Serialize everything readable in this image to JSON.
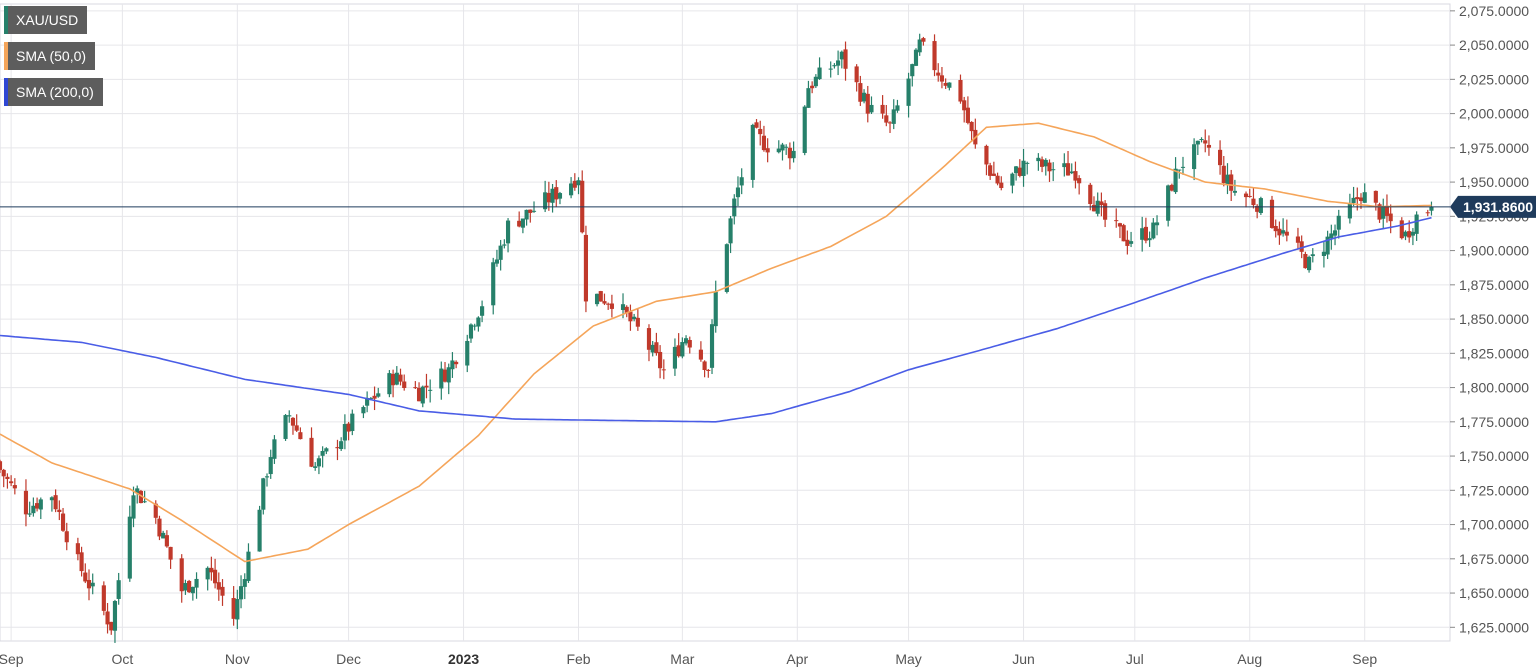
{
  "chart_data": {
    "type": "candlestick",
    "symbol": "XAU/USD",
    "last_price_label": "1,931.8600",
    "last_price": 1931.86,
    "y_range": [
      1615,
      2080
    ],
    "y_ticks": [
      {
        "value": 2075,
        "label": "2,075.0000"
      },
      {
        "value": 2050,
        "label": "2,050.0000"
      },
      {
        "value": 2025,
        "label": "2,025.0000"
      },
      {
        "value": 2000,
        "label": "2,000.0000"
      },
      {
        "value": 1975,
        "label": "1,975.0000"
      },
      {
        "value": 1950,
        "label": "1,950.0000"
      },
      {
        "value": 1925,
        "label": "1,925.0000"
      },
      {
        "value": 1900,
        "label": "1,900.0000"
      },
      {
        "value": 1875,
        "label": "1,875.0000"
      },
      {
        "value": 1850,
        "label": "1,850.0000"
      },
      {
        "value": 1825,
        "label": "1,825.0000"
      },
      {
        "value": 1800,
        "label": "1,800.0000"
      },
      {
        "value": 1775,
        "label": "1,775.0000"
      },
      {
        "value": 1750,
        "label": "1,750.0000"
      },
      {
        "value": 1725,
        "label": "1,725.0000"
      },
      {
        "value": 1700,
        "label": "1,700.0000"
      },
      {
        "value": 1675,
        "label": "1,675.0000"
      },
      {
        "value": 1650,
        "label": "1,650.0000"
      },
      {
        "value": 1625,
        "label": "1,625.0000"
      }
    ],
    "x_ticks": [
      {
        "label": "Sep",
        "date": "2022-09-01",
        "bold": false
      },
      {
        "label": "Oct",
        "date": "2022-10-01",
        "bold": false
      },
      {
        "label": "Nov",
        "date": "2022-11-01",
        "bold": false
      },
      {
        "label": "Dec",
        "date": "2022-12-01",
        "bold": false
      },
      {
        "label": "2023",
        "date": "2023-01-01",
        "bold": true
      },
      {
        "label": "Feb",
        "date": "2023-02-01",
        "bold": false
      },
      {
        "label": "Mar",
        "date": "2023-03-01",
        "bold": false
      },
      {
        "label": "Apr",
        "date": "2023-04-01",
        "bold": false
      },
      {
        "label": "May",
        "date": "2023-05-01",
        "bold": false
      },
      {
        "label": "Jun",
        "date": "2023-06-01",
        "bold": false
      },
      {
        "label": "Jul",
        "date": "2023-07-01",
        "bold": false
      },
      {
        "label": "Aug",
        "date": "2023-08-01",
        "bold": false
      },
      {
        "label": "Sep",
        "date": "2023-09-01",
        "bold": false
      }
    ],
    "x_range": [
      "2022-08-29",
      "2023-09-24"
    ],
    "grid": true,
    "colors": {
      "up": "#26806a",
      "down": "#c0392b",
      "sma50": "#f5a55a",
      "sma200": "#4a5de6",
      "price_line": "#1f3b5c",
      "price_label_bg": "#1f3b5c",
      "grid": "#e6e6ea",
      "axis_text": "#555555"
    },
    "legend": [
      {
        "label": "XAU/USD",
        "color": "#26806a"
      },
      {
        "label": "SMA (50,0)",
        "color": "#f5a55a"
      },
      {
        "label": "SMA (200,0)",
        "color": "#2f47d4"
      }
    ],
    "close_anchors": [
      [
        "2022-08-29",
        1740
      ],
      [
        "2022-09-05",
        1712
      ],
      [
        "2022-09-12",
        1722
      ],
      [
        "2022-09-19",
        1672
      ],
      [
        "2022-09-28",
        1626
      ],
      [
        "2022-10-04",
        1728
      ],
      [
        "2022-10-10",
        1705
      ],
      [
        "2022-10-17",
        1652
      ],
      [
        "2022-10-24",
        1668
      ],
      [
        "2022-10-31",
        1632
      ],
      [
        "2022-11-04",
        1678
      ],
      [
        "2022-11-10",
        1752
      ],
      [
        "2022-11-15",
        1780
      ],
      [
        "2022-11-22",
        1742
      ],
      [
        "2022-11-29",
        1764
      ],
      [
        "2022-12-05",
        1785
      ],
      [
        "2022-12-13",
        1808
      ],
      [
        "2022-12-20",
        1797
      ],
      [
        "2022-12-28",
        1813
      ],
      [
        "2023-01-06",
        1862
      ],
      [
        "2023-01-13",
        1918
      ],
      [
        "2023-01-20",
        1930
      ],
      [
        "2023-01-26",
        1942
      ],
      [
        "2023-02-01",
        1955
      ],
      [
        "2023-02-03",
        1868
      ],
      [
        "2023-02-10",
        1864
      ],
      [
        "2023-02-17",
        1842
      ],
      [
        "2023-02-24",
        1812
      ],
      [
        "2023-03-02",
        1838
      ],
      [
        "2023-03-08",
        1815
      ],
      [
        "2023-03-10",
        1868
      ],
      [
        "2023-03-15",
        1935
      ],
      [
        "2023-03-20",
        1985
      ],
      [
        "2023-03-24",
        1977
      ],
      [
        "2023-03-31",
        1972
      ],
      [
        "2023-04-04",
        2020
      ],
      [
        "2023-04-13",
        2041
      ],
      [
        "2023-04-20",
        2005
      ],
      [
        "2023-04-26",
        1990
      ],
      [
        "2023-05-03",
        2040
      ],
      [
        "2023-05-04",
        2050
      ],
      [
        "2023-05-10",
        2027
      ],
      [
        "2023-05-15",
        2012
      ],
      [
        "2023-05-19",
        1975
      ],
      [
        "2023-05-26",
        1946
      ],
      [
        "2023-06-02",
        1965
      ],
      [
        "2023-06-08",
        1960
      ],
      [
        "2023-06-15",
        1958
      ],
      [
        "2023-06-23",
        1922
      ],
      [
        "2023-06-29",
        1908
      ],
      [
        "2023-07-06",
        1915
      ],
      [
        "2023-07-13",
        1962
      ],
      [
        "2023-07-20",
        1978
      ],
      [
        "2023-07-27",
        1945
      ],
      [
        "2023-08-03",
        1935
      ],
      [
        "2023-08-10",
        1912
      ],
      [
        "2023-08-17",
        1890
      ],
      [
        "2023-08-24",
        1915
      ],
      [
        "2023-08-31",
        1942
      ],
      [
        "2023-09-05",
        1928
      ],
      [
        "2023-09-12",
        1911
      ],
      [
        "2023-09-15",
        1925
      ],
      [
        "2023-09-19",
        1931.86
      ]
    ],
    "sma50_anchors": [
      [
        "2022-08-29",
        1766
      ],
      [
        "2022-09-12",
        1745
      ],
      [
        "2022-10-03",
        1726
      ],
      [
        "2022-10-17",
        1703
      ],
      [
        "2022-11-03",
        1673
      ],
      [
        "2022-11-20",
        1682
      ],
      [
        "2022-12-01",
        1700
      ],
      [
        "2022-12-20",
        1728
      ],
      [
        "2023-01-05",
        1765
      ],
      [
        "2023-01-20",
        1810
      ],
      [
        "2023-02-05",
        1845
      ],
      [
        "2023-02-22",
        1863
      ],
      [
        "2023-03-10",
        1870
      ],
      [
        "2023-03-25",
        1887
      ],
      [
        "2023-04-10",
        1903
      ],
      [
        "2023-04-25",
        1925
      ],
      [
        "2023-05-10",
        1960
      ],
      [
        "2023-05-22",
        1990
      ],
      [
        "2023-06-05",
        1993
      ],
      [
        "2023-06-20",
        1983
      ],
      [
        "2023-07-05",
        1965
      ],
      [
        "2023-07-20",
        1950
      ],
      [
        "2023-08-05",
        1945
      ],
      [
        "2023-08-22",
        1936
      ],
      [
        "2023-09-05",
        1932
      ],
      [
        "2023-09-19",
        1933
      ]
    ],
    "sma200_anchors": [
      [
        "2022-08-29",
        1838
      ],
      [
        "2022-09-20",
        1833
      ],
      [
        "2022-10-10",
        1822
      ],
      [
        "2022-11-03",
        1806
      ],
      [
        "2022-12-01",
        1795
      ],
      [
        "2022-12-20",
        1783
      ],
      [
        "2023-01-15",
        1777
      ],
      [
        "2023-02-10",
        1776
      ],
      [
        "2023-03-10",
        1775
      ],
      [
        "2023-03-25",
        1781
      ],
      [
        "2023-04-15",
        1797
      ],
      [
        "2023-05-01",
        1813
      ],
      [
        "2023-05-20",
        1827
      ],
      [
        "2023-06-10",
        1843
      ],
      [
        "2023-07-01",
        1862
      ],
      [
        "2023-07-20",
        1880
      ],
      [
        "2023-08-10",
        1898
      ],
      [
        "2023-08-25",
        1910
      ],
      [
        "2023-09-10",
        1918
      ],
      [
        "2023-09-19",
        1924
      ]
    ]
  }
}
